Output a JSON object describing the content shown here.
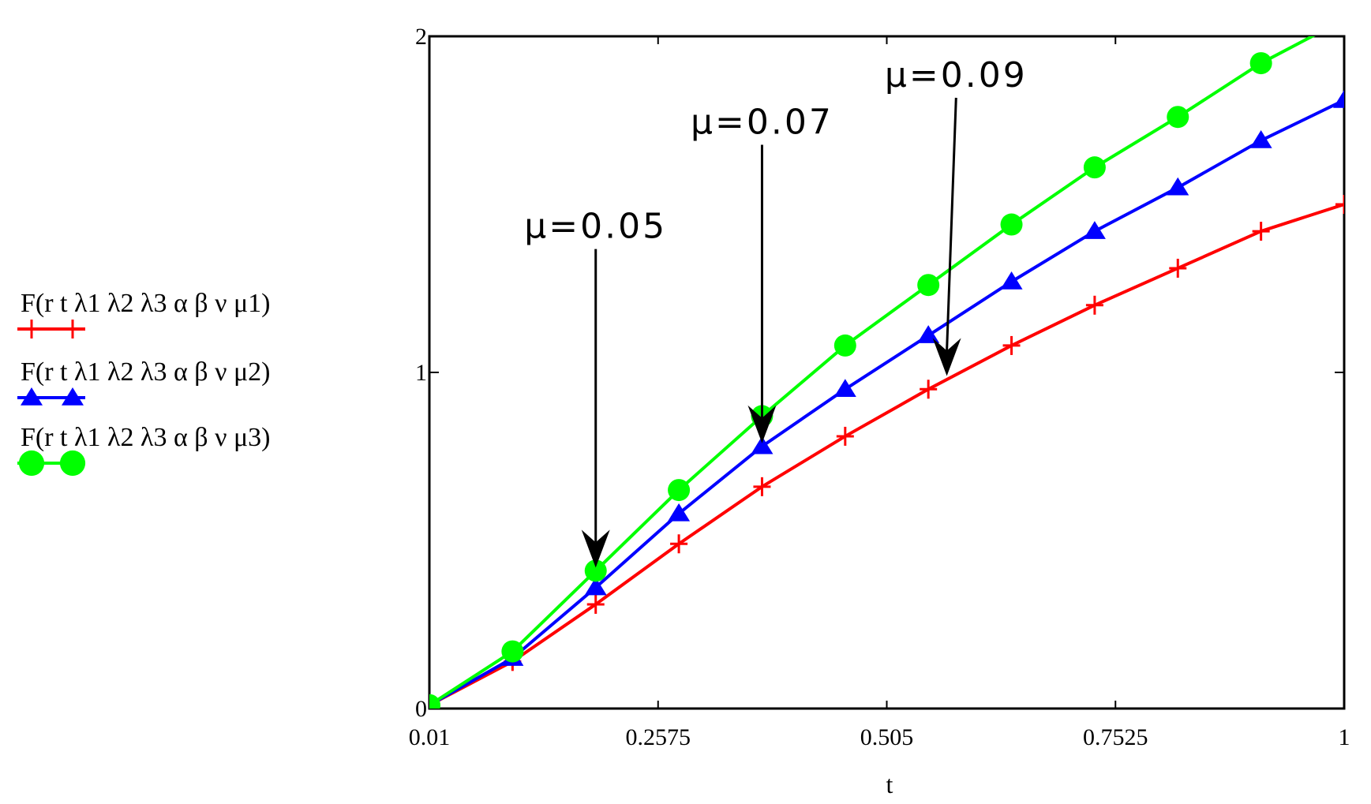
{
  "chart_data": {
    "type": "line",
    "xlabel": "t",
    "ylabel": "",
    "xlim": [
      0.01,
      1
    ],
    "ylim": [
      0,
      2
    ],
    "x_ticks": [
      "0.01",
      "0.2575",
      "0.505",
      "0.7525",
      "1"
    ],
    "y_ticks": [
      "0",
      "1",
      "2"
    ],
    "x": [
      0.01,
      0.1,
      0.19,
      0.28,
      0.37,
      0.46,
      0.55,
      0.64,
      0.73,
      0.82,
      0.91,
      1.0
    ],
    "series": [
      {
        "name": "F(r t λ1 λ2 λ3 α β ν μ1)",
        "color": "#ff0000",
        "marker": "plus",
        "values": [
          0.01,
          0.14,
          0.31,
          0.49,
          0.66,
          0.81,
          0.95,
          1.08,
          1.2,
          1.31,
          1.42,
          1.5
        ]
      },
      {
        "name": "F(r t λ1 λ2 λ3 α β ν μ2)",
        "color": "#0000ff",
        "marker": "triangle",
        "values": [
          0.01,
          0.15,
          0.36,
          0.58,
          0.78,
          0.95,
          1.11,
          1.27,
          1.42,
          1.55,
          1.69,
          1.81
        ]
      },
      {
        "name": "F(r t λ1 λ2 λ3 α β ν μ3)",
        "color": "#00ff00",
        "marker": "circle",
        "values": [
          0.01,
          0.17,
          0.41,
          0.65,
          0.87,
          1.08,
          1.26,
          1.44,
          1.61,
          1.76,
          1.92,
          2.05
        ]
      }
    ],
    "annotations": [
      {
        "text": "μ=0.05",
        "x": 0.19,
        "y": 0.41,
        "label_x": 0.19,
        "label_y": 1.4
      },
      {
        "text": "μ=0.07",
        "x": 0.37,
        "y": 0.78,
        "label_x": 0.37,
        "label_y": 1.71
      },
      {
        "text": "μ=0.09",
        "x": 0.57,
        "y": 0.98,
        "label_x": 0.58,
        "label_y": 1.85
      }
    ],
    "legend_position": "left",
    "grid": false
  }
}
